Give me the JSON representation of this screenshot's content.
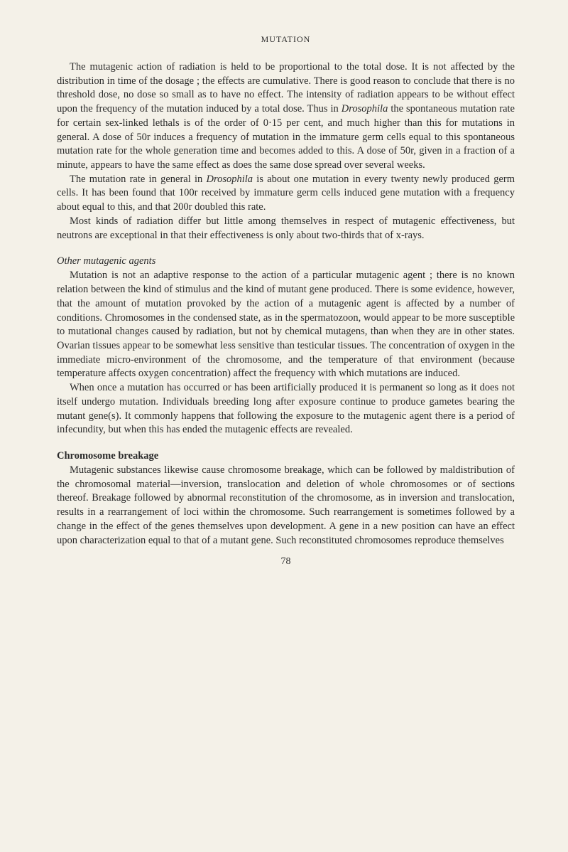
{
  "header": "MUTATION",
  "para1": "The mutagenic action of radiation is held to be proportional to the total dose. It is not affected by the distribution in time of the dosage ; the effects are cumulative. There is good reason to conclude that there is no threshold dose, no dose so small as to have no effect. The intensity of radiation appears to be without effect upon the frequency of the mutation induced by a total dose. Thus in ",
  "para1_italic": "Drosophila",
  "para1_cont": " the spontaneous mutation rate for certain sex-linked lethals is of the order of 0·15 per cent, and much higher than this for mutations in general. A dose of 50r induces a frequency of mutation in the immature germ cells equal to this spontaneous mutation rate for the whole generation time and becomes added to this. A dose of 50r, given in a fraction of a minute, appears to have the same effect as does the same dose spread over several weeks.",
  "para2a": "The mutation rate in general in ",
  "para2_italic": "Drosophila",
  "para2b": " is about one mutation in every twenty newly produced germ cells. It has been found that 100r received by immature germ cells induced gene mutation with a frequency about equal to this, and that 200r doubled this rate.",
  "para3": "Most kinds of radiation differ but little among themselves in respect of mutagenic effectiveness, but neutrons are exceptional in that their effectiveness is only about two-thirds that of x-rays.",
  "subheading1": "Other mutagenic agents",
  "para4": "Mutation is not an adaptive response to the action of a particular mutagenic agent ; there is no known relation between the kind of stimulus and the kind of mutant gene produced. There is some evidence, however, that the amount of mutation provoked by the action of a mutagenic agent is affected by a number of conditions. Chromosomes in the condensed state, as in the spermatozoon, would appear to be more susceptible to mutational changes caused by radiation, but not by chemical mutagens, than when they are in other states. Ovarian tissues appear to be somewhat less sensitive than testicular tissues. The concentration of oxygen in the immediate micro-environment of the chromosome, and the temperature of that environment (because temperature affects oxygen concentration) affect the frequency with which mutations are induced.",
  "para5": "When once a mutation has occurred or has been artificially produced it is permanent so long as it does not itself undergo mutation. Individuals breeding long after exposure continue to produce gametes bearing the mutant gene(s). It commonly happens that following the exposure to the mutagenic agent there is a period of infecundity, but when this has ended the mutagenic effects are revealed.",
  "subheading2": "Chromosome breakage",
  "para6": "Mutagenic substances likewise cause chromosome breakage, which can be followed by maldistribution of the chromosomal material—inversion, translocation and deletion of whole chromosomes or of sections thereof. Breakage followed by abnormal reconstitution of the chromosome, as in inversion and translocation, results in a rearrangement of loci within the chromosome. Such rearrangement is sometimes followed by a change in the effect of the genes themselves upon development. A gene in a new position can have an effect upon characterization equal to that of a mutant gene. Such reconstituted chromosomes reproduce themselves",
  "pageNumber": "78"
}
